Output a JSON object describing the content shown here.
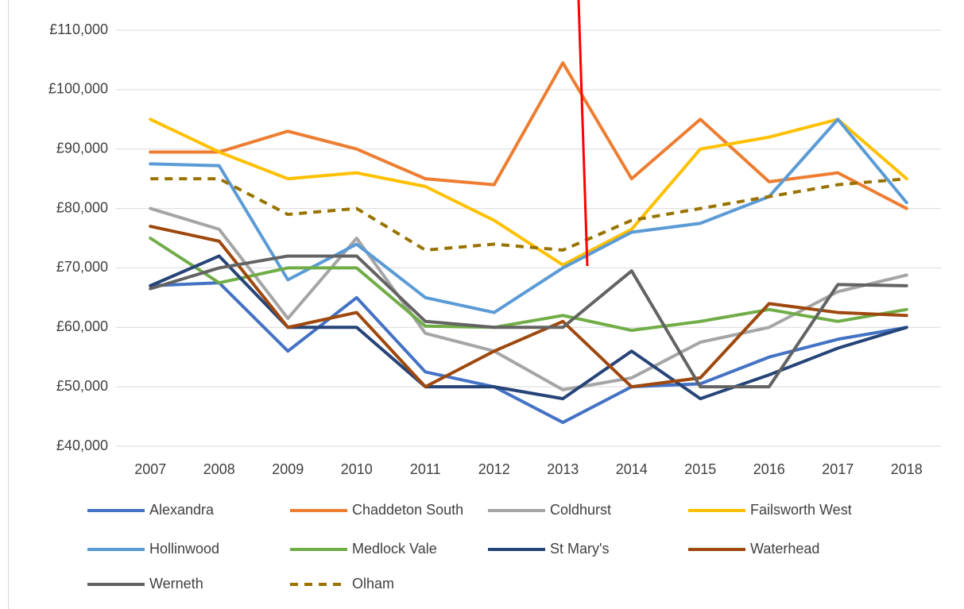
{
  "chart_data": {
    "type": "line",
    "categories": [
      "2007",
      "2008",
      "2009",
      "2010",
      "2011",
      "2012",
      "2013",
      "2014",
      "2015",
      "2016",
      "2017",
      "2018"
    ],
    "ylim": [
      40000,
      110000
    ],
    "yticks": [
      {
        "value": 40000,
        "label": "£40,000"
      },
      {
        "value": 50000,
        "label": "£50,000"
      },
      {
        "value": 60000,
        "label": "£60,000"
      },
      {
        "value": 70000,
        "label": "£70,000"
      },
      {
        "value": 80000,
        "label": "£80,000"
      },
      {
        "value": 90000,
        "label": "£90,000"
      },
      {
        "value": 100000,
        "label": "£100,000"
      },
      {
        "value": 110000,
        "label": "£110,000"
      }
    ],
    "grid": true,
    "legend": "bottom",
    "series": [
      {
        "name": "Alexandra",
        "color": "#4472c4",
        "values": [
          67000,
          67500,
          56000,
          65000,
          52500,
          50000,
          44000,
          50000,
          50500,
          55000,
          58000,
          60000
        ]
      },
      {
        "name": "Chaddeton South",
        "color": "#ed7d31",
        "values": [
          89500,
          89500,
          93000,
          90000,
          85000,
          84000,
          104500,
          85000,
          95000,
          84500,
          86000,
          80000
        ]
      },
      {
        "name": "Coldhurst",
        "color": "#a5a5a5",
        "values": [
          80000,
          76500,
          61500,
          75000,
          59000,
          56000,
          49500,
          51500,
          57500,
          60000,
          66000,
          68800
        ]
      },
      {
        "name": "Failsworth West",
        "color": "#ffc000",
        "values": [
          95000,
          89500,
          85000,
          86000,
          83700,
          78000,
          70500,
          76500,
          90000,
          92000,
          95000,
          85000
        ]
      },
      {
        "name": "Hollinwood",
        "color": "#5b9bd5",
        "values": [
          87500,
          87200,
          68000,
          74000,
          65000,
          62500,
          70000,
          76000,
          77500,
          82000,
          95000,
          81000
        ]
      },
      {
        "name": "Medlock Vale",
        "color": "#70ad47",
        "values": [
          75000,
          67500,
          70000,
          70000,
          60200,
          60000,
          62000,
          59500,
          61000,
          63000,
          61000,
          63000
        ]
      },
      {
        "name": "St Mary's",
        "color": "#264478",
        "values": [
          67000,
          72000,
          60000,
          60000,
          50000,
          50000,
          48000,
          56000,
          48000,
          52000,
          56500,
          60000
        ]
      },
      {
        "name": "Waterhead",
        "color": "#9e480e",
        "values": [
          77000,
          74500,
          60000,
          62500,
          50000,
          56000,
          61000,
          50000,
          51500,
          64000,
          62500,
          62000
        ]
      },
      {
        "name": "Werneth",
        "color": "#636363",
        "values": [
          66500,
          70000,
          72000,
          72000,
          61000,
          60000,
          60000,
          69500,
          50000,
          50000,
          67200,
          67000
        ]
      },
      {
        "name": "Olham",
        "color": "#997300",
        "dashed": true,
        "values": [
          85000,
          85000,
          79000,
          80000,
          73000,
          74000,
          73000,
          78000,
          80000,
          82000,
          84000,
          85000
        ]
      }
    ]
  }
}
